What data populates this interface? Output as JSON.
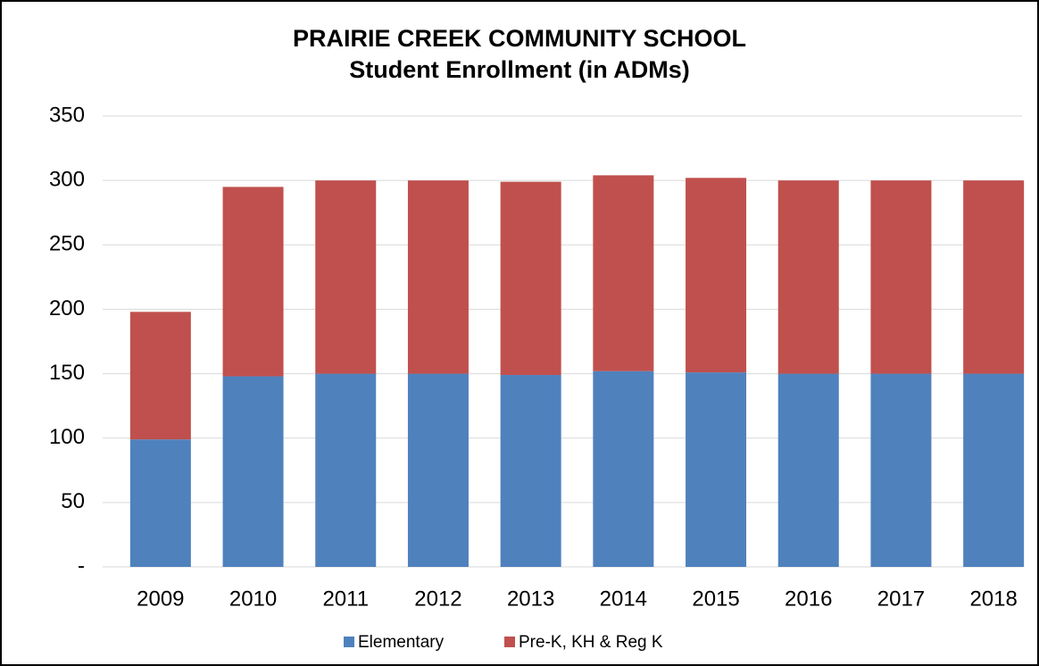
{
  "chart_data": {
    "type": "stacked_bar",
    "title": [
      "PRAIRIE CREEK COMMUNITY SCHOOL",
      "Student Enrollment (in ADMs)"
    ],
    "categories": [
      "2009",
      "2010",
      "2011",
      "2012",
      "2013",
      "2014",
      "2015",
      "2016",
      "2017",
      "2018"
    ],
    "series": [
      {
        "name": "Elementary",
        "color": "#4f81bd",
        "values": [
          99,
          148,
          150,
          150,
          149,
          152,
          151,
          150,
          150,
          150
        ]
      },
      {
        "name": "Pre-K, KH & Reg K",
        "color": "#c0504d",
        "values": [
          99,
          147,
          150,
          150,
          150,
          152,
          151,
          150,
          150,
          150
        ]
      }
    ],
    "ylim": [
      0,
      350
    ],
    "yticks": [
      {
        "value": 0,
        "label": "-"
      },
      50,
      100,
      150,
      200,
      250,
      300,
      350
    ],
    "grid": true,
    "legend": "bottom"
  }
}
